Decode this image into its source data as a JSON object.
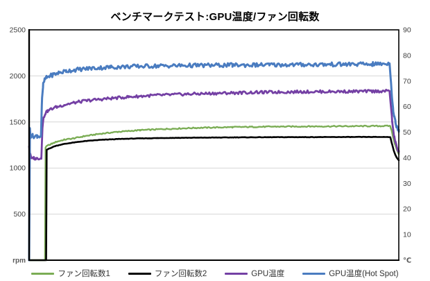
{
  "title": "ベンチマークテスト:GPU温度/ファン回転数",
  "chart_data": {
    "type": "line",
    "title": "ベンチマークテスト:GPU温度/ファン回転数",
    "x_axis": {
      "label": "",
      "tick_labels": [],
      "note": "time axis, no visible tick labels"
    },
    "left_axis": {
      "unit": "rpm",
      "min": 0,
      "max": 2500,
      "step": 500,
      "ticks": [
        {
          "v": 2500,
          "label": "2500"
        },
        {
          "v": 2000,
          "label": "2000"
        },
        {
          "v": 1500,
          "label": "1500"
        },
        {
          "v": 1000,
          "label": "1000"
        },
        {
          "v": 500,
          "label": "500"
        },
        {
          "v": 0,
          "label": "rpm"
        }
      ]
    },
    "right_axis": {
      "unit": "℃",
      "min": 0,
      "max": 90,
      "step": 10,
      "ticks": [
        {
          "v": 90,
          "label": "90"
        },
        {
          "v": 80,
          "label": "80"
        },
        {
          "v": 70,
          "label": "70"
        },
        {
          "v": 60,
          "label": "60"
        },
        {
          "v": 50,
          "label": "50"
        },
        {
          "v": 40,
          "label": "40"
        },
        {
          "v": 30,
          "label": "30"
        },
        {
          "v": 20,
          "label": "20"
        },
        {
          "v": 10,
          "label": "10"
        },
        {
          "v": 0,
          "label": "℃"
        }
      ]
    },
    "grid": {
      "horizontal_every_rpm": 500,
      "vertical": false,
      "color": "#d6d6d6"
    },
    "legend_position": "bottom",
    "series": [
      {
        "name": "ファン回転数1",
        "axis": "left",
        "color": "#7bad55",
        "stroke_width": 2.4,
        "noise_amplitude": 6,
        "points": [
          [
            0,
            0
          ],
          [
            0.043,
            0
          ],
          [
            0.0445,
            1225
          ],
          [
            0.05,
            1243
          ],
          [
            0.06,
            1262
          ],
          [
            0.075,
            1286
          ],
          [
            0.095,
            1308
          ],
          [
            0.12,
            1322
          ],
          [
            0.15,
            1346
          ],
          [
            0.19,
            1371
          ],
          [
            0.24,
            1393
          ],
          [
            0.3,
            1411
          ],
          [
            0.37,
            1424
          ],
          [
            0.45,
            1436
          ],
          [
            0.55,
            1444
          ],
          [
            0.65,
            1449
          ],
          [
            0.76,
            1452
          ],
          [
            0.87,
            1454
          ],
          [
            0.95,
            1456
          ],
          [
            0.977,
            1457
          ],
          [
            0.981,
            1400
          ],
          [
            0.985,
            1330
          ],
          [
            0.989,
            1268
          ],
          [
            0.993,
            1215
          ],
          [
            0.997,
            1176
          ],
          [
            1,
            1155
          ]
        ]
      },
      {
        "name": "ファン回転数2",
        "axis": "left",
        "color": "#000000",
        "stroke_width": 2.6,
        "noise_amplitude": 2,
        "points": [
          [
            0,
            0
          ],
          [
            0.046,
            0
          ],
          [
            0.0475,
            1196
          ],
          [
            0.052,
            1208
          ],
          [
            0.07,
            1238
          ],
          [
            0.09,
            1258
          ],
          [
            0.115,
            1274
          ],
          [
            0.15,
            1292
          ],
          [
            0.19,
            1305
          ],
          [
            0.24,
            1315
          ],
          [
            0.3,
            1322
          ],
          [
            0.38,
            1327
          ],
          [
            0.47,
            1330
          ],
          [
            0.57,
            1333
          ],
          [
            0.68,
            1335
          ],
          [
            0.8,
            1336
          ],
          [
            0.91,
            1337
          ],
          [
            0.977,
            1337
          ],
          [
            0.982,
            1256
          ],
          [
            0.986,
            1196
          ],
          [
            0.99,
            1150
          ],
          [
            0.994,
            1116
          ],
          [
            0.998,
            1093
          ],
          [
            1,
            1085
          ]
        ]
      },
      {
        "name": "GPU温度",
        "axis": "right",
        "color": "#7440a4",
        "stroke_width": 2.8,
        "noise_amplitude": 0.55,
        "points": [
          [
            0,
            44.5
          ],
          [
            0.003,
            41.2
          ],
          [
            0.006,
            39.7
          ],
          [
            0.012,
            40.0
          ],
          [
            0.018,
            39.6
          ],
          [
            0.024,
            39.9
          ],
          [
            0.03,
            39.7
          ],
          [
            0.033,
            40.0
          ],
          [
            0.036,
            52.0
          ],
          [
            0.039,
            55.5
          ],
          [
            0.043,
            57.2
          ],
          [
            0.05,
            58.3
          ],
          [
            0.06,
            59.1
          ],
          [
            0.075,
            59.9
          ],
          [
            0.095,
            60.7
          ],
          [
            0.12,
            61.5
          ],
          [
            0.16,
            62.4
          ],
          [
            0.21,
            63.1
          ],
          [
            0.27,
            63.8
          ],
          [
            0.34,
            64.4
          ],
          [
            0.43,
            64.9
          ],
          [
            0.53,
            65.3
          ],
          [
            0.63,
            65.6
          ],
          [
            0.74,
            65.8
          ],
          [
            0.85,
            65.9
          ],
          [
            0.93,
            66.0
          ],
          [
            0.975,
            66.1
          ],
          [
            0.979,
            60.0
          ],
          [
            0.982,
            54.5
          ],
          [
            0.985,
            50.5
          ],
          [
            0.988,
            48.0
          ],
          [
            0.991,
            46.0
          ],
          [
            0.994,
            44.5
          ],
          [
            0.997,
            43.2
          ],
          [
            1,
            42.3
          ]
        ]
      },
      {
        "name": "GPU温度(Hot Spot)",
        "axis": "right",
        "color": "#4a7cc0",
        "stroke_width": 3,
        "noise_amplitude": 0.8,
        "points": [
          [
            0,
            0
          ],
          [
            0.002,
            51.5
          ],
          [
            0.004,
            48.4
          ],
          [
            0.01,
            48.6
          ],
          [
            0.016,
            48.3
          ],
          [
            0.022,
            48.6
          ],
          [
            0.028,
            48.4
          ],
          [
            0.032,
            48.6
          ],
          [
            0.035,
            63.0
          ],
          [
            0.038,
            68.5
          ],
          [
            0.042,
            70.6
          ],
          [
            0.048,
            71.4
          ],
          [
            0.055,
            71.9
          ],
          [
            0.065,
            72.5
          ],
          [
            0.08,
            73.2
          ],
          [
            0.1,
            73.9
          ],
          [
            0.13,
            74.5
          ],
          [
            0.17,
            75.0
          ],
          [
            0.22,
            75.4
          ],
          [
            0.28,
            75.7
          ],
          [
            0.35,
            75.9
          ],
          [
            0.45,
            76.1
          ],
          [
            0.55,
            76.2
          ],
          [
            0.65,
            76.3
          ],
          [
            0.75,
            76.4
          ],
          [
            0.85,
            76.5
          ],
          [
            0.93,
            76.6
          ],
          [
            0.975,
            76.8
          ],
          [
            0.979,
            70.0
          ],
          [
            0.982,
            63.0
          ],
          [
            0.985,
            58.5
          ],
          [
            0.988,
            55.8
          ],
          [
            0.991,
            53.8
          ],
          [
            0.994,
            52.5
          ],
          [
            0.997,
            51.5
          ],
          [
            1,
            51.0
          ]
        ]
      }
    ],
    "colors": {
      "axis": "#000000",
      "tick_text": "#404040",
      "unit_text": "#595959",
      "background": "#ffffff"
    }
  }
}
